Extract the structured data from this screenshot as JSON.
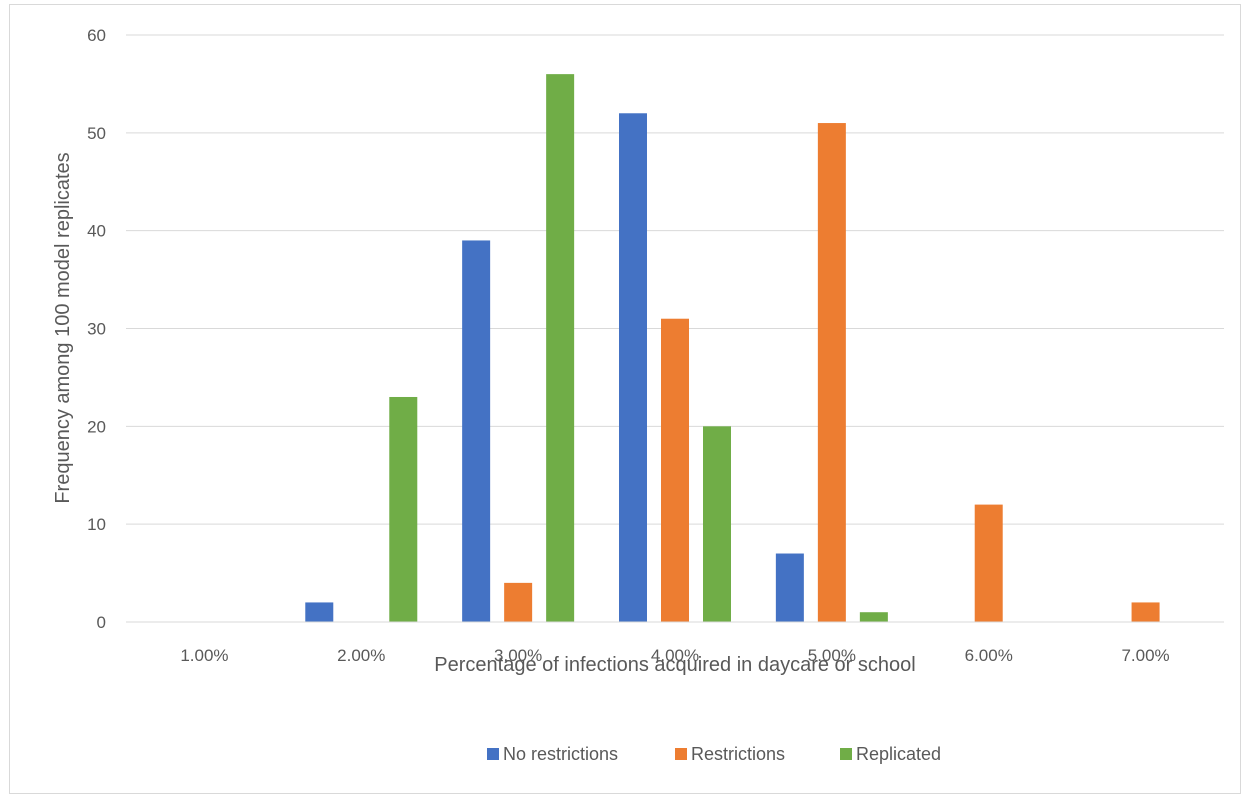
{
  "chart_data": {
    "type": "bar",
    "title": "",
    "xlabel": "Percentage of infections acquired in daycare or school",
    "ylabel": "Frequency among 100 model replicates",
    "categories": [
      "1.00%",
      "2.00%",
      "3.00%",
      "4.00%",
      "5.00%",
      "6.00%",
      "7.00%"
    ],
    "series": [
      {
        "name": "No restrictions",
        "color": "#4472C4",
        "values": [
          0,
          2,
          39,
          52,
          7,
          0,
          0
        ]
      },
      {
        "name": "Restrictions",
        "color": "#ED7D31",
        "values": [
          0,
          0,
          4,
          31,
          51,
          12,
          2
        ]
      },
      {
        "name": "Replicated",
        "color": "#70AD47",
        "values": [
          0,
          23,
          56,
          20,
          1,
          0,
          0
        ]
      }
    ],
    "ylim": [
      0,
      60
    ],
    "yticks": [
      "0",
      "10",
      "20",
      "30",
      "40",
      "50",
      "60"
    ],
    "grid": true,
    "legend_position": "bottom"
  }
}
